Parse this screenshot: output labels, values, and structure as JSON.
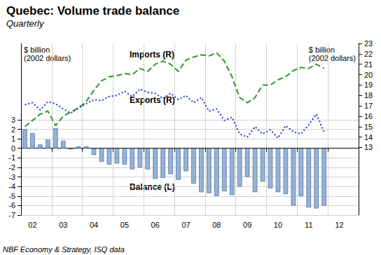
{
  "chart_data": {
    "type": "bar",
    "title": "Quebec: Volume trade balance",
    "subtitle": "Quarterly",
    "y_label": "$ billion\n(2002 dollars)",
    "y2_label": "$ billion\n(2002 dollars)",
    "source": "NBF Economy & Strategy, ISQ data",
    "categories": [
      null,
      "02",
      null,
      null,
      null,
      "03",
      null,
      null,
      null,
      "04",
      null,
      null,
      null,
      "05",
      null,
      null,
      null,
      "06",
      null,
      null,
      null,
      "07",
      null,
      null,
      null,
      "08",
      null,
      null,
      null,
      "09",
      null,
      null,
      null,
      "10",
      null,
      null,
      null,
      "11",
      null,
      null,
      null,
      "12",
      null,
      null
    ],
    "series": [
      {
        "name": "Balance (L)",
        "type": "bar",
        "color": "#95b3d7",
        "values": [
          2.0,
          1.6,
          0.4,
          0.9,
          2.1,
          0.8,
          -0.1,
          0.2,
          0.2,
          -0.7,
          -1.4,
          -1.7,
          -1.6,
          -1.7,
          -2.2,
          -2.0,
          -2.2,
          -3.2,
          -3.1,
          -2.7,
          -3.3,
          -2.4,
          -3.7,
          -4.6,
          -4.7,
          -5.0,
          -4.5,
          -4.9,
          -4.0,
          -3.0,
          -4.6,
          -3.5,
          -4.2,
          -4.6,
          -4.8,
          -6.0,
          -5.0,
          -6.2,
          -6.3,
          -6.0,
          null,
          null,
          null,
          null
        ]
      },
      {
        "name": "Imports (R)",
        "type": "line",
        "axis": "y2",
        "color": "#2e9a2e",
        "line_style": "dashed",
        "values": [
          15.0,
          15.6,
          16.2,
          16.5,
          15.1,
          16.0,
          16.4,
          16.8,
          17.4,
          18.5,
          19.4,
          19.8,
          19.9,
          20.1,
          20.0,
          20.6,
          20.3,
          21.0,
          21.3,
          21.0,
          20.3,
          21.4,
          21.7,
          21.9,
          21.8,
          22.1,
          21.3,
          19.8,
          17.8,
          17.3,
          17.8,
          19.0,
          19.0,
          19.5,
          19.8,
          20.4,
          20.7,
          20.6,
          21.0,
          20.6,
          null,
          null,
          null,
          null
        ]
      },
      {
        "name": "Exports (R)",
        "type": "line",
        "axis": "y2",
        "color": "#1f2fd6",
        "line_style": "dotted",
        "values": [
          17.1,
          17.3,
          16.6,
          17.4,
          17.2,
          16.7,
          16.3,
          16.8,
          17.2,
          17.6,
          17.5,
          17.9,
          18.0,
          18.4,
          17.9,
          18.6,
          18.3,
          18.2,
          17.7,
          18.2,
          17.6,
          18.0,
          17.3,
          17.8,
          16.5,
          16.7,
          15.6,
          15.9,
          14.3,
          14.0,
          15.0,
          14.3,
          14.7,
          13.9,
          15.1,
          14.5,
          14.3,
          15.2,
          16.2,
          14.5,
          null,
          null,
          null,
          null
        ]
      }
    ],
    "ylim": [
      -7,
      11
    ],
    "yticks": [
      -7,
      -6,
      -5,
      -4,
      -3,
      -2,
      -1,
      0,
      1,
      2,
      3
    ],
    "y2lim": [
      6.5,
      23
    ],
    "y2ticks": [
      13,
      14,
      15,
      16,
      17,
      18,
      19,
      20,
      21,
      22,
      23
    ],
    "grid": true
  }
}
